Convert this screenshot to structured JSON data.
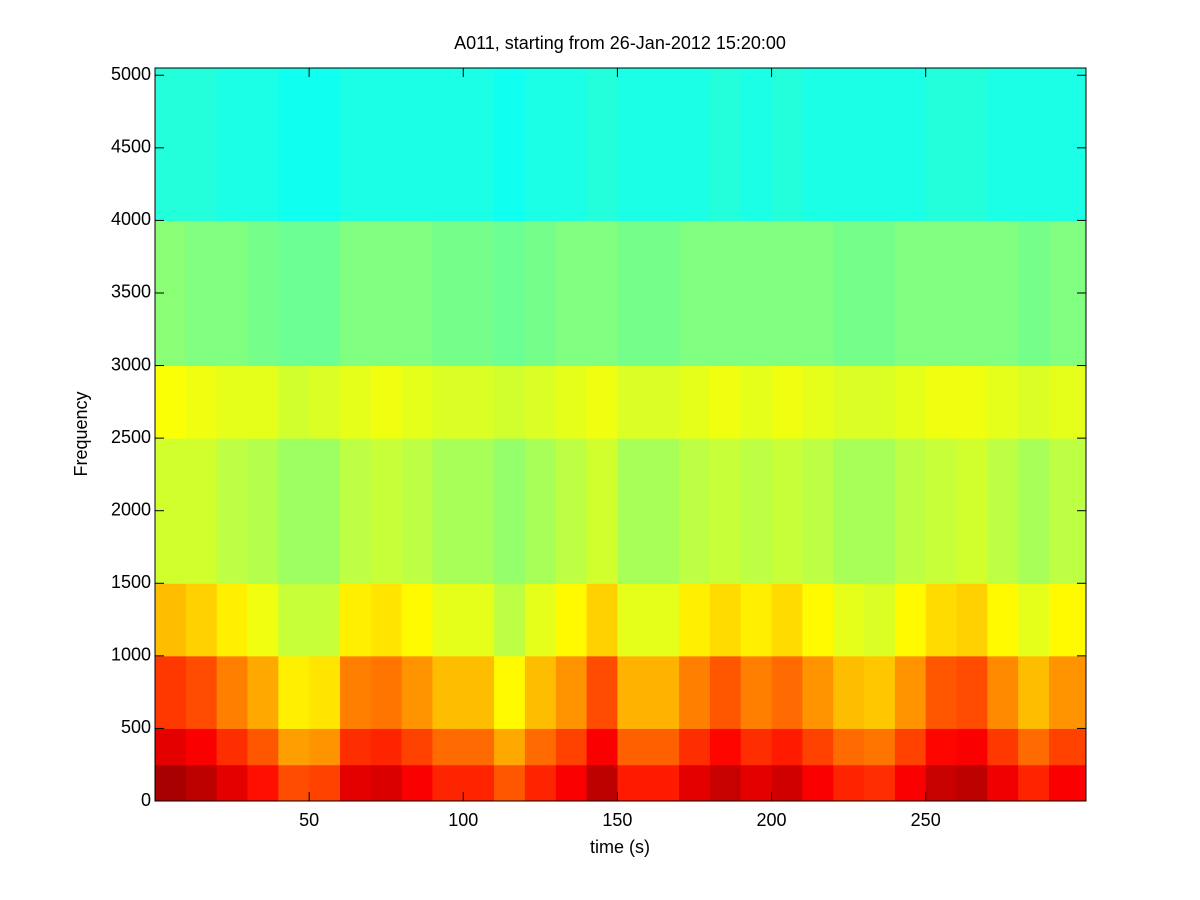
{
  "chart_data": {
    "type": "heatmap",
    "title": "A011, starting from 26-Jan-2012 15:20:00",
    "x_label": "time (s)",
    "y_label": "Frequency",
    "xlim": [
      0,
      302
    ],
    "ylim": [
      0,
      5050
    ],
    "xticks": [
      50,
      100,
      150,
      200,
      250
    ],
    "yticks": [
      0,
      500,
      1000,
      1500,
      2000,
      2500,
      3000,
      3500,
      4000,
      4500,
      5000
    ],
    "colormap": "jet",
    "clim": [
      0,
      1
    ],
    "xbins": [
      0,
      10,
      20,
      30,
      40,
      50,
      60,
      70,
      80,
      90,
      100,
      110,
      120,
      130,
      140,
      150,
      160,
      170,
      180,
      190,
      200,
      210,
      220,
      230,
      240,
      250,
      260,
      270,
      280,
      290,
      302
    ],
    "ybins": [
      0,
      250,
      500,
      1000,
      1500,
      2500,
      3000,
      4000,
      5050
    ],
    "z": [
      [
        0.96,
        0.94,
        0.9,
        0.86,
        0.8,
        0.81,
        0.9,
        0.91,
        0.88,
        0.84,
        0.84,
        0.79,
        0.84,
        0.88,
        0.94,
        0.85,
        0.85,
        0.9,
        0.93,
        0.9,
        0.92,
        0.88,
        0.84,
        0.83,
        0.88,
        0.93,
        0.94,
        0.89,
        0.84,
        0.88
      ],
      [
        0.9,
        0.88,
        0.83,
        0.79,
        0.72,
        0.73,
        0.83,
        0.84,
        0.81,
        0.77,
        0.77,
        0.71,
        0.77,
        0.81,
        0.88,
        0.78,
        0.78,
        0.83,
        0.87,
        0.83,
        0.85,
        0.81,
        0.77,
        0.76,
        0.81,
        0.87,
        0.88,
        0.82,
        0.77,
        0.81
      ],
      [
        0.82,
        0.8,
        0.75,
        0.71,
        0.64,
        0.65,
        0.75,
        0.76,
        0.73,
        0.69,
        0.69,
        0.63,
        0.69,
        0.73,
        0.8,
        0.7,
        0.7,
        0.75,
        0.79,
        0.75,
        0.77,
        0.73,
        0.69,
        0.68,
        0.73,
        0.79,
        0.8,
        0.74,
        0.69,
        0.73
      ],
      [
        0.69,
        0.67,
        0.64,
        0.61,
        0.57,
        0.57,
        0.64,
        0.65,
        0.63,
        0.6,
        0.6,
        0.56,
        0.6,
        0.63,
        0.67,
        0.6,
        0.6,
        0.64,
        0.66,
        0.64,
        0.66,
        0.63,
        0.6,
        0.59,
        0.63,
        0.66,
        0.67,
        0.63,
        0.6,
        0.63
      ],
      [
        0.58,
        0.58,
        0.56,
        0.55,
        0.53,
        0.53,
        0.56,
        0.57,
        0.56,
        0.54,
        0.54,
        0.52,
        0.54,
        0.56,
        0.58,
        0.54,
        0.54,
        0.56,
        0.57,
        0.56,
        0.57,
        0.56,
        0.54,
        0.54,
        0.56,
        0.57,
        0.58,
        0.56,
        0.54,
        0.56
      ],
      [
        0.62,
        0.61,
        0.6,
        0.6,
        0.58,
        0.59,
        0.6,
        0.61,
        0.6,
        0.59,
        0.59,
        0.58,
        0.59,
        0.6,
        0.61,
        0.59,
        0.59,
        0.6,
        0.61,
        0.6,
        0.61,
        0.6,
        0.59,
        0.59,
        0.6,
        0.61,
        0.61,
        0.6,
        0.59,
        0.6
      ],
      [
        0.51,
        0.5,
        0.5,
        0.49,
        0.48,
        0.48,
        0.5,
        0.5,
        0.5,
        0.49,
        0.49,
        0.48,
        0.49,
        0.5,
        0.5,
        0.49,
        0.49,
        0.5,
        0.5,
        0.5,
        0.5,
        0.5,
        0.49,
        0.49,
        0.5,
        0.5,
        0.5,
        0.5,
        0.49,
        0.5
      ],
      [
        0.41,
        0.41,
        0.4,
        0.4,
        0.39,
        0.39,
        0.4,
        0.4,
        0.4,
        0.4,
        0.4,
        0.39,
        0.4,
        0.4,
        0.41,
        0.4,
        0.4,
        0.4,
        0.41,
        0.4,
        0.41,
        0.4,
        0.4,
        0.4,
        0.4,
        0.41,
        0.41,
        0.4,
        0.4,
        0.4
      ]
    ]
  }
}
